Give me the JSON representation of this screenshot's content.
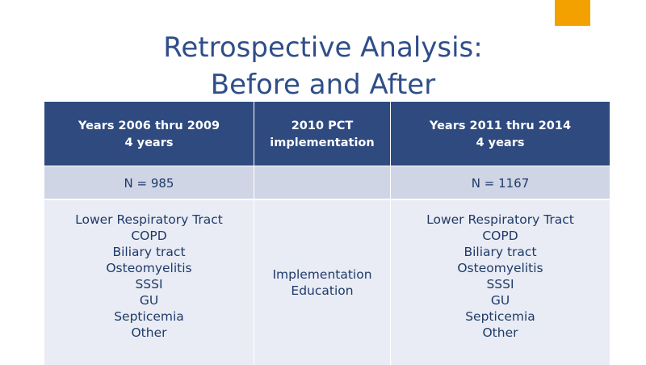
{
  "title": {
    "line1": "Retrospective Analysis:",
    "line2": "Before and After"
  },
  "table": {
    "headers": [
      {
        "line1": "Years 2006 thru 2009",
        "line2": "4 years"
      },
      {
        "line1": "2010 PCT",
        "line2": "implementation"
      },
      {
        "line1": "Years 2011 thru 2014",
        "line2": "4 years"
      }
    ],
    "n_row": [
      "N =  985",
      "",
      "N = 1167"
    ],
    "before_list": [
      "Lower Respiratory Tract",
      "COPD",
      "Biliary tract",
      "Osteomyelitis",
      "SSSI",
      "GU",
      "Septicemia",
      "Other"
    ],
    "middle_list": [
      "Implementation",
      "Education"
    ],
    "after_list": [
      "Lower Respiratory Tract",
      "COPD",
      "Biliary tract",
      "Osteomyelitis",
      "SSSI",
      "GU",
      "Septicemia",
      "Other"
    ]
  },
  "colors": {
    "accent": "#f2a100",
    "title": "#2f4e8a",
    "header_bg": "#2e4a7f",
    "n_row_bg": "#cfd5e4",
    "list_row_bg": "#e9ecf4",
    "body_text": "#1f3a68"
  }
}
